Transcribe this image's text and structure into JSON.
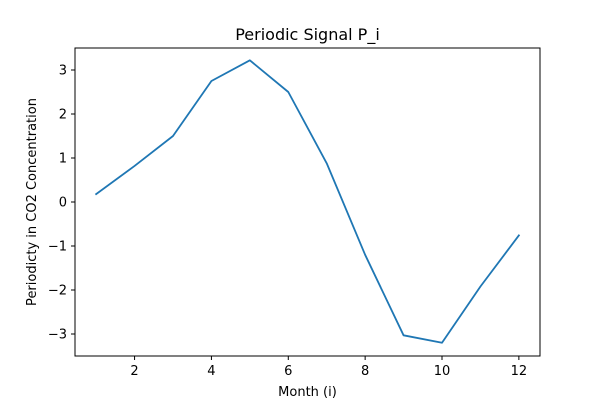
{
  "chart_data": {
    "type": "line",
    "title": "Periodic Signal P_i",
    "xlabel": "Month (i)",
    "ylabel": "Periodicty in CO2 Concentration",
    "xlim": [
      0.45,
      12.55
    ],
    "ylim": [
      -3.5,
      3.5
    ],
    "x_ticks": [
      2,
      4,
      6,
      8,
      10,
      12
    ],
    "x_tick_labels": [
      "2",
      "4",
      "6",
      "8",
      "10",
      "12"
    ],
    "y_ticks": [
      -3,
      -2,
      -1,
      0,
      1,
      2,
      3
    ],
    "y_tick_labels": [
      "−3",
      "−2",
      "−1",
      "0",
      "1",
      "2",
      "3"
    ],
    "grid": false,
    "series": [
      {
        "color": "#1f77b4",
        "x": [
          1,
          2,
          3,
          4,
          5,
          6,
          7,
          8,
          9,
          10,
          11,
          12
        ],
        "values": [
          0.18,
          0.82,
          1.5,
          2.75,
          3.22,
          2.5,
          0.88,
          -1.2,
          -3.03,
          -3.2,
          -1.92,
          -0.76
        ]
      }
    ]
  }
}
